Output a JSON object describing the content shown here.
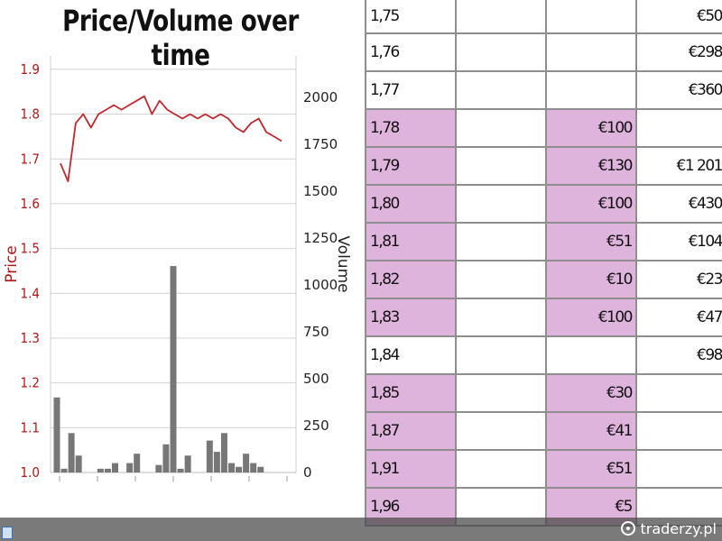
{
  "chart_data": {
    "type": "line+bar",
    "title": "Price/Volume over time",
    "ylabel_left": "Price",
    "ylabel_right": "Volume",
    "y_left_range": [
      1.0,
      1.93
    ],
    "y_left_ticks": [
      "1.0",
      "1.1",
      "1.2",
      "1.3",
      "1.4",
      "1.5",
      "1.6",
      "1.7",
      "1.8",
      "1.9"
    ],
    "y_right_range": [
      0,
      2220
    ],
    "y_right_ticks": [
      "0",
      "250",
      "500",
      "750",
      "1000",
      "1250",
      "1500",
      "1750",
      "2000"
    ],
    "grid": true,
    "colors": {
      "price_line": "#c0282d",
      "volume_bars": "#777777",
      "left_axis": "#b01818"
    },
    "price_series": {
      "name": "Price",
      "x": [
        0,
        1,
        2,
        3,
        4,
        5,
        6,
        7,
        8,
        9,
        10,
        11,
        12,
        13,
        14,
        15,
        16,
        17,
        18,
        19,
        20,
        21,
        22,
        23,
        24,
        25,
        26,
        27,
        28,
        29
      ],
      "values": [
        1.69,
        1.65,
        1.78,
        1.8,
        1.77,
        1.8,
        1.81,
        1.82,
        1.81,
        1.82,
        1.83,
        1.84,
        1.8,
        1.83,
        1.81,
        1.8,
        1.79,
        1.8,
        1.79,
        1.8,
        1.79,
        1.8,
        1.79,
        1.77,
        1.76,
        1.78,
        1.79,
        1.76,
        1.75,
        1.74
      ]
    },
    "volume_series": {
      "name": "Volume",
      "x": [
        0,
        1,
        2,
        3,
        4,
        5,
        6,
        7,
        8,
        9,
        10,
        11,
        12,
        13,
        14,
        15,
        16,
        17,
        18,
        19,
        20,
        21,
        22,
        23,
        24,
        25,
        26,
        27,
        28,
        29,
        30,
        31,
        32
      ],
      "values": [
        400,
        20,
        210,
        90,
        0,
        0,
        20,
        20,
        50,
        0,
        50,
        100,
        0,
        0,
        40,
        150,
        1100,
        20,
        90,
        0,
        0,
        170,
        110,
        210,
        50,
        30,
        100,
        50,
        30,
        0,
        0,
        0,
        0
      ]
    }
  },
  "table": {
    "rows": [
      {
        "price": "1,75",
        "bid": "",
        "ask": "€50",
        "highlight": false
      },
      {
        "price": "1,76",
        "bid": "",
        "ask": "€298",
        "highlight": false
      },
      {
        "price": "1,77",
        "bid": "",
        "ask": "€360",
        "highlight": false
      },
      {
        "price": "1,78",
        "bid": "€100",
        "ask": "",
        "highlight": true
      },
      {
        "price": "1,79",
        "bid": "€130",
        "ask": "€1 201",
        "highlight": true
      },
      {
        "price": "1,80",
        "bid": "€100",
        "ask": "€430",
        "highlight": true
      },
      {
        "price": "1,81",
        "bid": "€51",
        "ask": "€104",
        "highlight": true
      },
      {
        "price": "1,82",
        "bid": "€10",
        "ask": "€23",
        "highlight": true
      },
      {
        "price": "1,83",
        "bid": "€100",
        "ask": "€47",
        "highlight": true
      },
      {
        "price": "1,84",
        "bid": "",
        "ask": "€98",
        "highlight": false
      },
      {
        "price": "1,85",
        "bid": "€30",
        "ask": "",
        "highlight": true
      },
      {
        "price": "1,87",
        "bid": "€41",
        "ask": "",
        "highlight": true
      },
      {
        "price": "1,91",
        "bid": "€51",
        "ask": "",
        "highlight": true
      },
      {
        "price": "1,96",
        "bid": "€5",
        "ask": "",
        "highlight": true
      }
    ]
  },
  "watermark": {
    "text": "traderzy.pl",
    "icon": "traderzy-logo-icon"
  }
}
